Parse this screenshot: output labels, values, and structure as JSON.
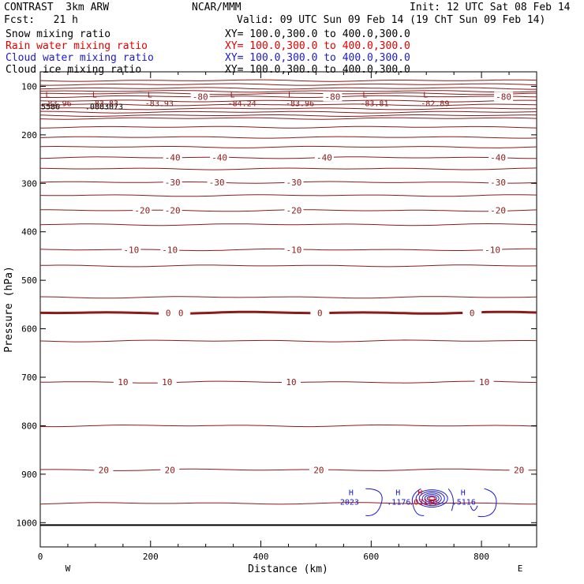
{
  "header": {
    "title_left": "CONTRAST  3km ARW",
    "center": "NCAR/MMM",
    "init": "Init: 12 UTC Sat 08 Feb 14",
    "fcst": "Fcst:   21 h",
    "valid": "Valid: 09 UTC Sun 09 Feb 14 (19 ChT Sun 09 Feb 14)",
    "fields": [
      {
        "name": "Snow mixing ratio",
        "xy": "XY= 100.0,300.0 to 400.0,300.0",
        "color": "#000000"
      },
      {
        "name": "Rain water mixing ratio",
        "xy": "XY= 100.0,300.0 to 400.0,300.0",
        "color": "#e00000"
      },
      {
        "name": "Cloud water mixing ratio",
        "xy": "XY= 100.0,300.0 to 400.0,300.0",
        "color": "#1a1acc"
      },
      {
        "name": "Cloud ice mixing ratio",
        "xy": "XY= 100.0,300.0 to 400.0,300.0",
        "color": "#000000"
      }
    ]
  },
  "chart_data": {
    "type": "line",
    "xlabel": "Distance (km)",
    "ylabel": "Pressure (hPa)",
    "xlim": [
      0,
      900
    ],
    "ylim": [
      1050,
      70
    ],
    "x_ticks": [
      0,
      200,
      400,
      600,
      800
    ],
    "y_ticks": [
      100,
      200,
      300,
      400,
      500,
      600,
      700,
      800,
      900,
      1000
    ],
    "x_end_labels": {
      "left": "W",
      "right": "E"
    },
    "colors": {
      "temperature": "#8b1a1a",
      "cloud": "#1a1acc",
      "rain": "#e00000",
      "ground": "#000000"
    },
    "ground_pressure": 1005,
    "temperature_isotherms": [
      {
        "value": -80,
        "p": 121,
        "labels": [
          {
            "x": 290,
            "text": "-80"
          },
          {
            "x": 530,
            "text": "-80"
          },
          {
            "x": 840,
            "text": "-80"
          }
        ]
      },
      {
        "value": -40,
        "p": 247,
        "labels": [
          {
            "x": 240,
            "text": "-40"
          },
          {
            "x": 325,
            "text": "-40"
          },
          {
            "x": 515,
            "text": "-40"
          },
          {
            "x": 830,
            "text": "-40"
          }
        ]
      },
      {
        "value": -30,
        "p": 298,
        "labels": [
          {
            "x": 240,
            "text": "-30"
          },
          {
            "x": 320,
            "text": "-30"
          },
          {
            "x": 460,
            "text": "-30"
          },
          {
            "x": 830,
            "text": "-30"
          }
        ]
      },
      {
        "value": -20,
        "p": 356,
        "labels": [
          {
            "x": 185,
            "text": "-20"
          },
          {
            "x": 240,
            "text": "-20"
          },
          {
            "x": 460,
            "text": "-20"
          },
          {
            "x": 830,
            "text": "-20"
          }
        ]
      },
      {
        "value": -10,
        "p": 437,
        "labels": [
          {
            "x": 165,
            "text": "-10"
          },
          {
            "x": 235,
            "text": "-10"
          },
          {
            "x": 460,
            "text": "-10"
          },
          {
            "x": 820,
            "text": "-10"
          }
        ]
      },
      {
        "value": 0,
        "p": 567,
        "heavy": true,
        "labels": [
          {
            "x": 232,
            "text": "0"
          },
          {
            "x": 255,
            "text": "0"
          },
          {
            "x": 507,
            "text": "0"
          },
          {
            "x": 783,
            "text": "0"
          }
        ]
      },
      {
        "value": 10,
        "p": 710,
        "labels": [
          {
            "x": 150,
            "text": "10"
          },
          {
            "x": 230,
            "text": "10"
          },
          {
            "x": 455,
            "text": "10"
          },
          {
            "x": 805,
            "text": "10"
          }
        ]
      },
      {
        "value": 20,
        "p": 891,
        "labels": [
          {
            "x": 115,
            "text": "20"
          },
          {
            "x": 235,
            "text": "20"
          },
          {
            "x": 505,
            "text": "20"
          },
          {
            "x": 868,
            "text": "20"
          }
        ]
      }
    ],
    "min_labels": [
      {
        "x": 5,
        "p": 95,
        "mark": "L",
        "value": "-83.96"
      },
      {
        "x": 90,
        "p": 95,
        "mark": "L",
        "value": "-83.83"
      },
      {
        "x": 190,
        "p": 95,
        "mark": "L",
        "value": "-83.93"
      },
      {
        "x": 340,
        "p": 95,
        "mark": "L",
        "value": "-84.24"
      },
      {
        "x": 445,
        "p": 95,
        "mark": "L",
        "value": "-83.96"
      },
      {
        "x": 580,
        "p": 95,
        "mark": "L",
        "value": "-83.81"
      },
      {
        "x": 690,
        "p": 95,
        "mark": "L",
        "value": "-82.89"
      }
    ],
    "snow_labels": [
      {
        "x": 0,
        "p": 120,
        "text": "5586"
      },
      {
        "x": 80,
        "p": 120,
        "text": ".0003073"
      }
    ],
    "max_labels": [
      {
        "x": 555,
        "p": 953,
        "mark": "H",
        "value": "2023",
        "color": "#1a1acc"
      },
      {
        "x": 640,
        "p": 953,
        "mark": "H",
        "value": ".1176",
        "color": "#1a1acc"
      },
      {
        "x": 680,
        "p": 953,
        "mark": "H",
        "value": ".03180",
        "color": "#e00000"
      },
      {
        "x": 758,
        "p": 953,
        "mark": "H",
        "value": ".5116",
        "color": "#1a1acc"
      }
    ],
    "stratosphere_lines_p": [
      88,
      96,
      104,
      110,
      115,
      130,
      138,
      146,
      153,
      160,
      166,
      184,
      205,
      225,
      270,
      325,
      385,
      470,
      535,
      625,
      800,
      960
    ]
  }
}
